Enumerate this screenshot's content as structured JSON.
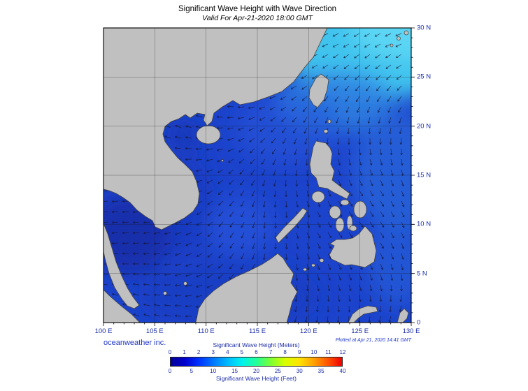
{
  "header": {
    "title": "Significant Wave Height with Wave Direction",
    "subtitle": "Valid For Apr-21-2020 18:00 GMT"
  },
  "footer": {
    "credit": "oceanweather inc.",
    "plotted": "Plotted at Apr 21, 2020 14:41 GMT"
  },
  "axes": {
    "x_ticks": [
      "100 E",
      "105 E",
      "110 E",
      "115 E",
      "120 E",
      "125 E",
      "130 E"
    ],
    "y_ticks": [
      "30 N",
      "25 N",
      "20 N",
      "15 N",
      "10 N",
      "5 N",
      "0"
    ],
    "lon_range": [
      100,
      130
    ],
    "lat_range": [
      0,
      30
    ],
    "grid_step_deg": 5
  },
  "legend": {
    "meters_label": "Significant Wave Height (Meters)",
    "feet_label": "Significant Wave Height (Feet)",
    "meters_ticks": [
      "0",
      "1",
      "2",
      "3",
      "4",
      "5",
      "6",
      "7",
      "8",
      "9",
      "10",
      "11",
      "12"
    ],
    "feet_ticks": [
      "0",
      "5",
      "10",
      "15",
      "20",
      "25",
      "30",
      "35",
      "40"
    ],
    "gradient_colors": [
      "#000099",
      "#0000CD",
      "#0033FF",
      "#0077FF",
      "#00BBFF",
      "#00F2EE",
      "#22FF99",
      "#7BFF33",
      "#D8FF00",
      "#FFE400",
      "#FFA300",
      "#FF5500",
      "#F00000"
    ]
  },
  "map": {
    "colors": {
      "ocean_base": "#1C43CC",
      "ocean_high_ne": "#3FC4EE",
      "ocean_low": "#142FA8",
      "land": "#C0C0C0",
      "coastline": "#444444",
      "grid": "#1A1A1A",
      "arrow": "#14142E",
      "frame": "#000000"
    }
  }
}
